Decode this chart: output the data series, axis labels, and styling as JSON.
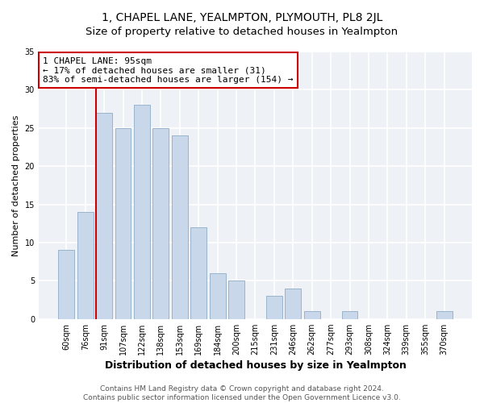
{
  "title": "1, CHAPEL LANE, YEALMPTON, PLYMOUTH, PL8 2JL",
  "subtitle": "Size of property relative to detached houses in Yealmpton",
  "xlabel": "Distribution of detached houses by size in Yealmpton",
  "ylabel": "Number of detached properties",
  "bar_labels": [
    "60sqm",
    "76sqm",
    "91sqm",
    "107sqm",
    "122sqm",
    "138sqm",
    "153sqm",
    "169sqm",
    "184sqm",
    "200sqm",
    "215sqm",
    "231sqm",
    "246sqm",
    "262sqm",
    "277sqm",
    "293sqm",
    "308sqm",
    "324sqm",
    "339sqm",
    "355sqm",
    "370sqm"
  ],
  "bar_values": [
    9,
    14,
    27,
    25,
    28,
    25,
    24,
    12,
    6,
    5,
    0,
    3,
    4,
    1,
    0,
    1,
    0,
    0,
    0,
    0,
    1
  ],
  "bar_color": "#c8d8ea",
  "bar_edge_color": "#9ab4cc",
  "vline_x_index": 2,
  "vline_color": "#cc0000",
  "annotation_text_line1": "1 CHAPEL LANE: 95sqm",
  "annotation_text_line2": "← 17% of detached houses are smaller (31)",
  "annotation_text_line3": "83% of semi-detached houses are larger (154) →",
  "ylim": [
    0,
    35
  ],
  "yticks": [
    0,
    5,
    10,
    15,
    20,
    25,
    30,
    35
  ],
  "footer_line1": "Contains HM Land Registry data © Crown copyright and database right 2024.",
  "footer_line2": "Contains public sector information licensed under the Open Government Licence v3.0.",
  "bg_color": "#ffffff",
  "plot_bg_color": "#eef2f7",
  "grid_color": "#ffffff",
  "title_fontsize": 10,
  "subtitle_fontsize": 9.5,
  "xlabel_fontsize": 9,
  "ylabel_fontsize": 8,
  "tick_fontsize": 7,
  "annotation_fontsize": 8,
  "footer_fontsize": 6.5
}
